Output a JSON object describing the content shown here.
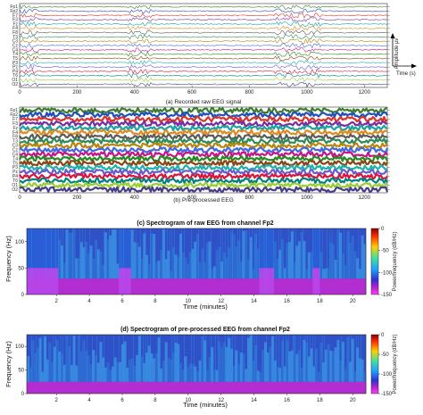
{
  "chart_data": [
    {
      "id": "raw_eeg",
      "type": "line",
      "caption": "(a) Recorded raw EEG signal",
      "channels": [
        "Fp1",
        "Fp2",
        "F7",
        "F3",
        "Fz",
        "F4",
        "F8",
        "T3",
        "C3",
        "Cz",
        "C4",
        "T4",
        "T5",
        "P3",
        "Pz",
        "P4",
        "T6",
        "O1",
        "O2"
      ],
      "x_ticks": [
        "0",
        "200",
        "400",
        "600",
        "800",
        "1000",
        "1200"
      ],
      "xlim": [
        0,
        1280
      ],
      "artifact_regions_x": [
        [
          0,
          65
        ],
        [
          375,
          460
        ],
        [
          890,
          1050
        ]
      ],
      "inset": {
        "ylabel": "Amplitude µv",
        "xlabel": "Time (s)"
      }
    },
    {
      "id": "preprocessed_eeg",
      "type": "line",
      "caption": "(b) Pre-processed EEG",
      "channels": [
        "Fp1",
        "Fp2",
        "F7",
        "F3",
        "Fz",
        "F4",
        "F8",
        "T3",
        "C3",
        "Cz",
        "C4",
        "T4",
        "T5",
        "P3",
        "Pz",
        "P4",
        "T6",
        "O1",
        "O2"
      ],
      "x_ticks": [
        "0",
        "200",
        "400",
        "600",
        "800",
        "1000",
        "1200"
      ],
      "xlim": [
        0,
        1280
      ]
    },
    {
      "id": "spec_raw",
      "type": "heatmap",
      "title": "(c) Spectrogram of raw EEG from channel Fp2",
      "xlabel": "Time (minutes)",
      "ylabel": "Frequency (Hz)",
      "x_ticks": [
        "2",
        "4",
        "6",
        "8",
        "10",
        "12",
        "14",
        "16",
        "18",
        "20"
      ],
      "y_ticks": [
        "0",
        "50",
        "100"
      ],
      "xlim": [
        0.2,
        20.8
      ],
      "ylim": [
        0,
        125
      ],
      "colorbar": {
        "label": "Power/frequency (dB/Hz)",
        "ticks": [
          "0",
          "-50",
          "-100",
          "-150"
        ],
        "range": [
          -150,
          0
        ]
      },
      "high_power_segments_min": [
        [
          0.2,
          2.0
        ],
        [
          5.7,
          6.5
        ],
        [
          14.3,
          15.2
        ],
        [
          17.5,
          18.0
        ]
      ],
      "baseline_band_hz": [
        0,
        30
      ]
    },
    {
      "id": "spec_pre",
      "type": "heatmap",
      "title": "(d) Spectrogram of pre-processed EEG from channel Fp2",
      "xlabel": "Time (minutes)",
      "ylabel": "Frequency (Hz)",
      "x_ticks": [
        "2",
        "4",
        "6",
        "8",
        "10",
        "12",
        "14",
        "16",
        "18",
        "20"
      ],
      "y_ticks": [
        "0",
        "50",
        "100"
      ],
      "xlim": [
        0.2,
        20.8
      ],
      "ylim": [
        0,
        125
      ],
      "colorbar": {
        "label": "Power/frequency (dB/Hz)",
        "ticks": [
          "0",
          "-50",
          "-100",
          "-150"
        ],
        "range": [
          -150,
          0
        ]
      },
      "baseline_band_hz": [
        0,
        25
      ]
    }
  ],
  "colors": {
    "trace_palette": [
      "#3b7d2c",
      "#1f4fbf",
      "#d9342b",
      "#7a2ca0",
      "#1aa3a3",
      "#e08a1e",
      "#5b5b5b",
      "#2e8b57",
      "#b8860b",
      "#4169e1",
      "#c71585",
      "#228b22",
      "#8b4513",
      "#20b2aa",
      "#6a5acd",
      "#dc143c",
      "#008080",
      "#9acd32",
      "#483d8b"
    ],
    "spec_low": "#3050c8",
    "spec_mid": "#2aa8e8",
    "spec_band": "#c02ad0"
  }
}
